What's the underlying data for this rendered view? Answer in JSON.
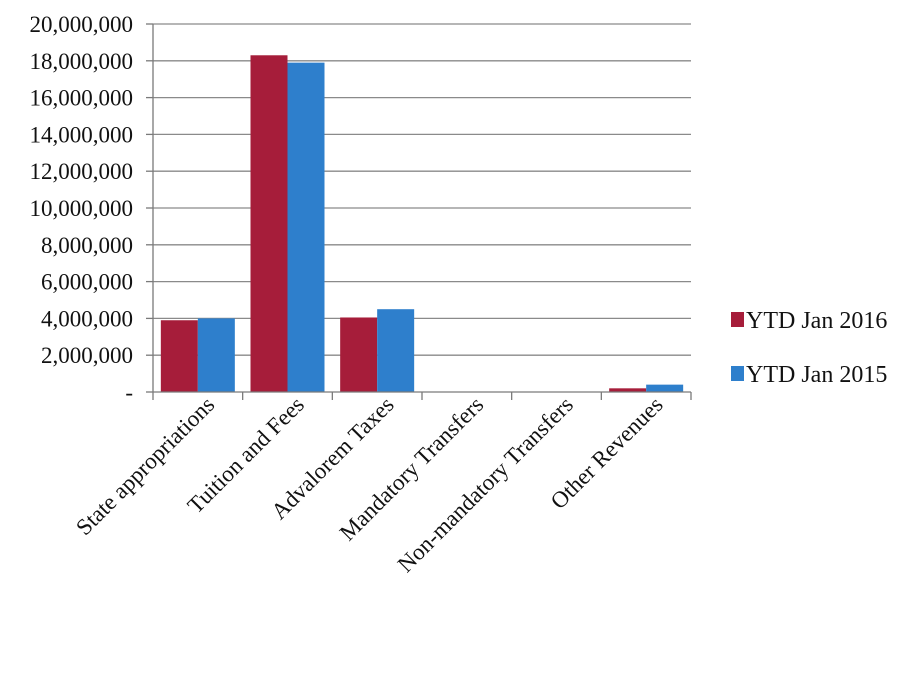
{
  "chart_data": {
    "type": "bar",
    "categories": [
      "State appropriations",
      "Tuition and Fees",
      "Advalorem Taxes",
      "Mandatory Transfers",
      "Non-mandatory Transfers",
      "Other Revenues"
    ],
    "series": [
      {
        "name": "YTD Jan 2016",
        "color": "#a61d3a",
        "values": [
          3900000,
          18300000,
          4050000,
          0,
          0,
          200000
        ]
      },
      {
        "name": "YTD Jan 2015",
        "color": "#2e7fcc",
        "values": [
          4000000,
          17900000,
          4500000,
          0,
          0,
          400000
        ]
      }
    ],
    "y_ticks": [
      {
        "value": 0,
        "label": "-"
      },
      {
        "value": 2000000,
        "label": "2,000,000"
      },
      {
        "value": 4000000,
        "label": "4,000,000"
      },
      {
        "value": 6000000,
        "label": "6,000,000"
      },
      {
        "value": 8000000,
        "label": "8,000,000"
      },
      {
        "value": 10000000,
        "label": "10,000,000"
      },
      {
        "value": 12000000,
        "label": "12,000,000"
      },
      {
        "value": 14000000,
        "label": "14,000,000"
      },
      {
        "value": 16000000,
        "label": "16,000,000"
      },
      {
        "value": 18000000,
        "label": "18,000,000"
      },
      {
        "value": 20000000,
        "label": "20,000,000"
      }
    ],
    "ylim": [
      0,
      20000000
    ],
    "grid": true,
    "legend_position": "right"
  }
}
